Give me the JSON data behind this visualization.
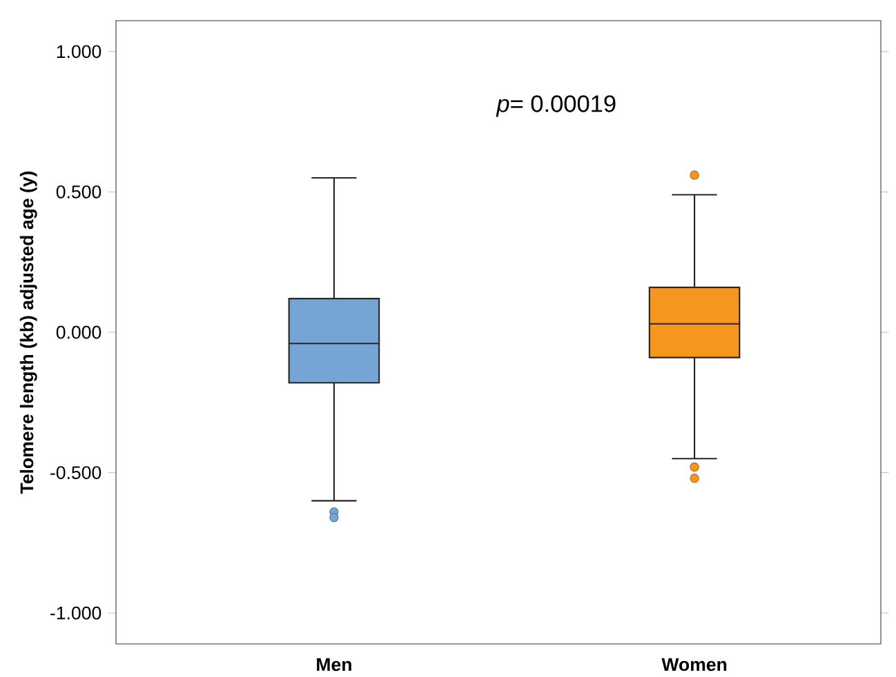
{
  "chart_data": {
    "type": "box",
    "ylabel": "Telomere length (kb) adjusted age (y)",
    "categories": [
      "Men",
      "Women"
    ],
    "colors": [
      "#75a5d4",
      "#f6961f"
    ],
    "boxes": [
      {
        "low": -0.6,
        "q1": -0.18,
        "median": -0.04,
        "q3": 0.12,
        "high": 0.55,
        "outliers": [
          -0.64,
          -0.66
        ]
      },
      {
        "low": -0.45,
        "q1": -0.09,
        "median": 0.03,
        "q3": 0.16,
        "high": 0.49,
        "outliers": [
          0.56,
          -0.48,
          -0.52
        ]
      }
    ],
    "ylim": [
      -1.11,
      1.11
    ],
    "yticks": [
      {
        "value": -1,
        "label": "-1.000"
      },
      {
        "value": -0.5,
        "label": "-0.500"
      },
      {
        "value": 0,
        "label": "0.000"
      },
      {
        "value": 0.5,
        "label": "0.500"
      },
      {
        "value": 1,
        "label": "1.000"
      }
    ],
    "annotations": [
      "*p*= 0.00019"
    ]
  }
}
